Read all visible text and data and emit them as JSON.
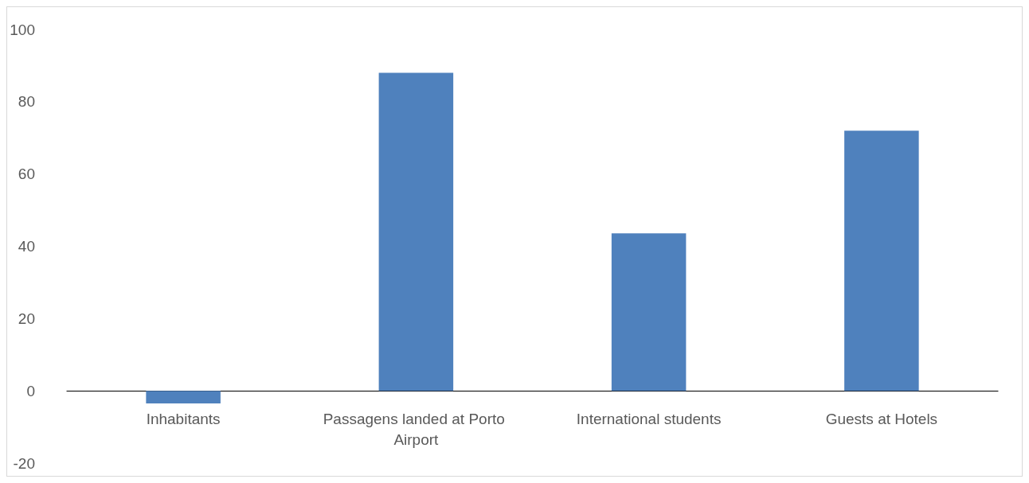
{
  "chart_data": {
    "type": "bar",
    "categories": [
      "Inhabitants",
      "Passagens landed at Porto Airport",
      "International students",
      "Guests at Hotels"
    ],
    "values": [
      -3.5,
      88,
      43.6,
      72
    ],
    "color": "#4f81bd",
    "ylim": [
      -20,
      100
    ],
    "yticks": [
      -20,
      0,
      20,
      40,
      60,
      80,
      100
    ]
  }
}
